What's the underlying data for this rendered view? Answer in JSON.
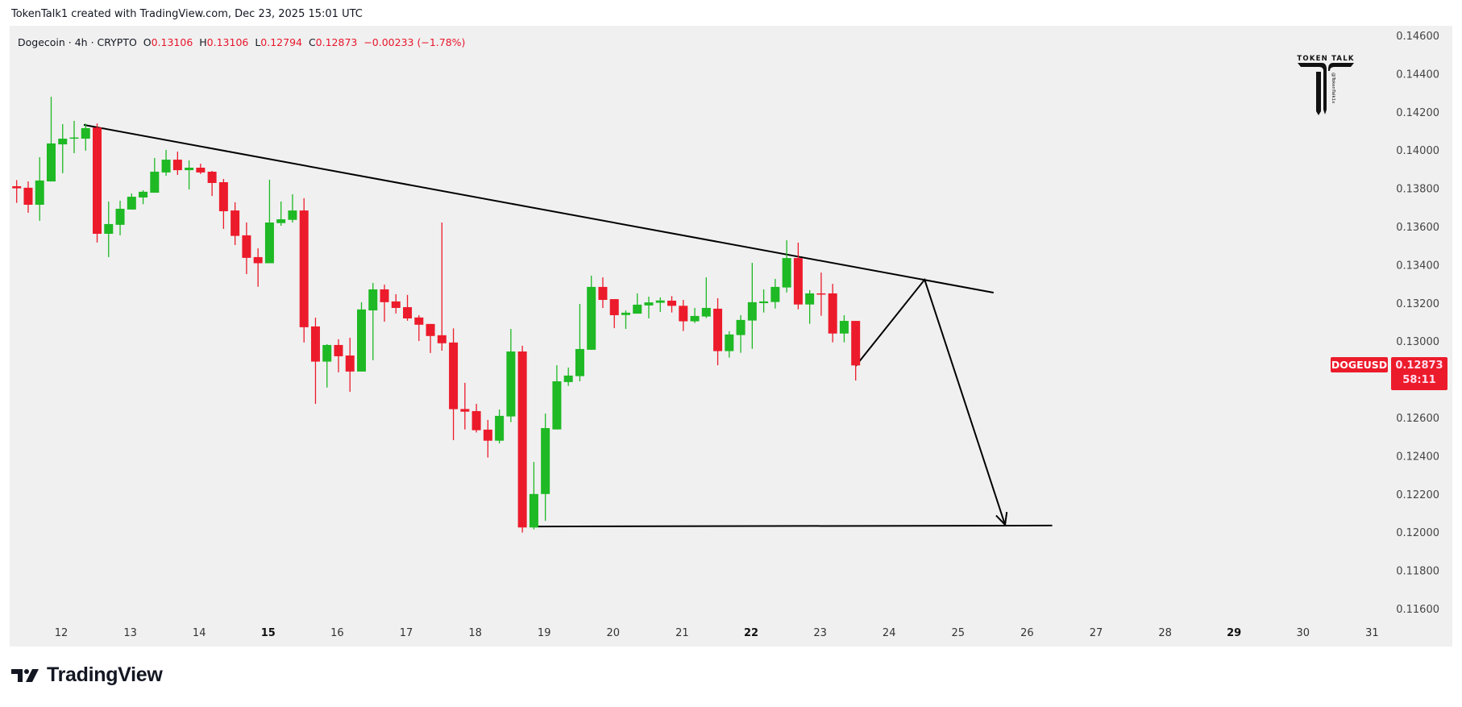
{
  "credit": "TokenTalk1 created with TradingView.com, Dec 23, 2025 15:01 UTC",
  "legend": {
    "symbol": "Dogecoin · 4h · CRYPTO",
    "o_label": "O",
    "o": "0.13106",
    "h_label": "H",
    "h": "0.13106",
    "l_label": "L",
    "l": "0.12794",
    "c_label": "C",
    "c": "0.12873",
    "change": "−0.00233 (−1.78%)"
  },
  "watermark": {
    "title": "TOKEN TALK",
    "handle": "@TokenTalk1x"
  },
  "price_label": {
    "symbol": "DOGEUSD",
    "price": "0.12873",
    "countdown": "58:11"
  },
  "footer": {
    "brand": "TradingView"
  },
  "colors": {
    "up": "#1eb924",
    "down": "#ec1b2b",
    "panel": "#f0f0f0",
    "drawing": "#000000"
  },
  "chart_data": {
    "type": "candlestick",
    "title": "Dogecoin · 4h · CRYPTO",
    "symbol": "DOGEUSD",
    "interval": "4h",
    "first_candle": "Dec 11 08:00",
    "ylim": [
      0.1155,
      0.147
    ],
    "price_ticks": [
      "0.14600",
      "0.14400",
      "0.14200",
      "0.14000",
      "0.13800",
      "0.13600",
      "0.13400",
      "0.13200",
      "0.13000",
      "0.12600",
      "0.12400",
      "0.12200",
      "0.12000",
      "0.11800",
      "0.11600"
    ],
    "date_ticks": [
      {
        "day": 12,
        "label": "12"
      },
      {
        "day": 13,
        "label": "13"
      },
      {
        "day": 14,
        "label": "14"
      },
      {
        "day": 15,
        "label": "15",
        "bold": true
      },
      {
        "day": 16,
        "label": "16"
      },
      {
        "day": 17,
        "label": "17"
      },
      {
        "day": 18,
        "label": "18"
      },
      {
        "day": 19,
        "label": "19"
      },
      {
        "day": 20,
        "label": "20"
      },
      {
        "day": 21,
        "label": "21"
      },
      {
        "day": 22,
        "label": "22",
        "bold": true
      },
      {
        "day": 23,
        "label": "23"
      },
      {
        "day": 24,
        "label": "24"
      },
      {
        "day": 25,
        "label": "25"
      },
      {
        "day": 26,
        "label": "26"
      },
      {
        "day": 27,
        "label": "27"
      },
      {
        "day": 28,
        "label": "28"
      },
      {
        "day": 29,
        "label": "29",
        "bold": true
      },
      {
        "day": 30,
        "label": "30"
      },
      {
        "day": 31,
        "label": "31"
      }
    ],
    "candles_ohlc": [
      [
        0.13811,
        0.13843,
        0.13724,
        0.138
      ],
      [
        0.13803,
        0.13836,
        0.13672,
        0.13714
      ],
      [
        0.13714,
        0.13963,
        0.1363,
        0.13841
      ],
      [
        0.13836,
        0.14279,
        0.13836,
        0.14035
      ],
      [
        0.1403,
        0.14136,
        0.13879,
        0.1406
      ],
      [
        0.1406,
        0.14153,
        0.13984,
        0.14066
      ],
      [
        0.1406,
        0.14139,
        0.13997,
        0.14115
      ],
      [
        0.14118,
        0.14139,
        0.13516,
        0.13562
      ],
      [
        0.13562,
        0.13731,
        0.1344,
        0.13613
      ],
      [
        0.13609,
        0.13735,
        0.13554,
        0.13693
      ],
      [
        0.13689,
        0.13773,
        0.13689,
        0.13756
      ],
      [
        0.13752,
        0.1379,
        0.13717,
        0.13782
      ],
      [
        0.13777,
        0.13959,
        0.13777,
        0.13887
      ],
      [
        0.13883,
        0.14001,
        0.13866,
        0.1395
      ],
      [
        0.1395,
        0.13992,
        0.1387,
        0.13895
      ],
      [
        0.13895,
        0.13946,
        0.13794,
        0.13908
      ],
      [
        0.13908,
        0.13929,
        0.13875,
        0.13883
      ],
      [
        0.13887,
        0.13891,
        0.1376,
        0.13828
      ],
      [
        0.13832,
        0.13849,
        0.13588,
        0.1368
      ],
      [
        0.13684,
        0.13727,
        0.13503,
        0.13551
      ],
      [
        0.13554,
        0.13621,
        0.13351,
        0.13436
      ],
      [
        0.1344,
        0.13486,
        0.13285,
        0.13408
      ],
      [
        0.13408,
        0.13845,
        0.13408,
        0.13621
      ],
      [
        0.13618,
        0.13731,
        0.13604,
        0.13638
      ],
      [
        0.13635,
        0.13769,
        0.13621,
        0.13684
      ],
      [
        0.13684,
        0.13748,
        0.12993,
        0.13073
      ],
      [
        0.13077,
        0.13123,
        0.12672,
        0.12893
      ],
      [
        0.12893,
        0.12984,
        0.12757,
        0.1298
      ],
      [
        0.1298,
        0.1301,
        0.12837,
        0.12921
      ],
      [
        0.12925,
        0.13018,
        0.12735,
        0.12841
      ],
      [
        0.12841,
        0.13204,
        0.12841,
        0.13166
      ],
      [
        0.13161,
        0.13305,
        0.129,
        0.13271
      ],
      [
        0.13271,
        0.13296,
        0.13102,
        0.13204
      ],
      [
        0.13208,
        0.13246,
        0.13145,
        0.13174
      ],
      [
        0.13178,
        0.13242,
        0.13107,
        0.13119
      ],
      [
        0.13124,
        0.13136,
        0.13001,
        0.13086
      ],
      [
        0.1309,
        0.1309,
        0.12938,
        0.13027
      ],
      [
        0.13031,
        0.13621,
        0.1295,
        0.12989
      ],
      [
        0.12993,
        0.13067,
        0.12482,
        0.12644
      ],
      [
        0.12645,
        0.12782,
        0.12538,
        0.12631
      ],
      [
        0.12634,
        0.12672,
        0.12522,
        0.12534
      ],
      [
        0.12537,
        0.12588,
        0.12391,
        0.12479
      ],
      [
        0.12479,
        0.12642,
        0.12465,
        0.12609
      ],
      [
        0.12606,
        0.13064,
        0.12576,
        0.12946
      ],
      [
        0.12946,
        0.12976,
        0.11998,
        0.12025
      ],
      [
        0.12025,
        0.12368,
        0.12015,
        0.122
      ],
      [
        0.122,
        0.12621,
        0.1206,
        0.12545
      ],
      [
        0.12538,
        0.12874,
        0.12538,
        0.1279
      ],
      [
        0.12786,
        0.12862,
        0.12766,
        0.1282
      ],
      [
        0.12817,
        0.13195,
        0.1279,
        0.12959
      ],
      [
        0.12955,
        0.13343,
        0.12955,
        0.13284
      ],
      [
        0.13284,
        0.13334,
        0.13174,
        0.13216
      ],
      [
        0.1322,
        0.1322,
        0.13068,
        0.13136
      ],
      [
        0.13137,
        0.13161,
        0.13064,
        0.13149
      ],
      [
        0.13144,
        0.1325,
        0.13144,
        0.13191
      ],
      [
        0.13187,
        0.13233,
        0.13119,
        0.13203
      ],
      [
        0.13201,
        0.13229,
        0.13153,
        0.13213
      ],
      [
        0.13212,
        0.13236,
        0.1315,
        0.13185
      ],
      [
        0.13185,
        0.13216,
        0.13053,
        0.13104
      ],
      [
        0.13104,
        0.13174,
        0.13095,
        0.13132
      ],
      [
        0.13129,
        0.13334,
        0.13121,
        0.13174
      ],
      [
        0.1317,
        0.13225,
        0.12874,
        0.12948
      ],
      [
        0.12948,
        0.13052,
        0.12914,
        0.13035
      ],
      [
        0.13032,
        0.13136,
        0.12939,
        0.13111
      ],
      [
        0.13108,
        0.1341,
        0.1296,
        0.13204
      ],
      [
        0.13199,
        0.13271,
        0.1315,
        0.13208
      ],
      [
        0.13205,
        0.13326,
        0.13171,
        0.13284
      ],
      [
        0.13281,
        0.13528,
        0.13255,
        0.13435
      ],
      [
        0.13435,
        0.13516,
        0.13167,
        0.13192
      ],
      [
        0.13192,
        0.13267,
        0.13091,
        0.1325
      ],
      [
        0.1325,
        0.13359,
        0.13133,
        0.13246
      ],
      [
        0.1325,
        0.133,
        0.12994,
        0.1304
      ],
      [
        0.1304,
        0.13136,
        0.12994,
        0.13106
      ],
      [
        0.13106,
        0.13106,
        0.12794,
        0.12873
      ]
    ],
    "drawings": {
      "resistance_line": [
        [
          5.84,
          0.14132
        ],
        [
          85.0,
          0.13254
        ]
      ],
      "support_line": [
        [
          45.0,
          0.1203
        ],
        [
          90.1,
          0.12035
        ]
      ],
      "projection_path": [
        [
          73.0,
          0.1287
        ],
        [
          79.0,
          0.13322
        ],
        [
          86.0,
          0.12039
        ]
      ]
    }
  }
}
